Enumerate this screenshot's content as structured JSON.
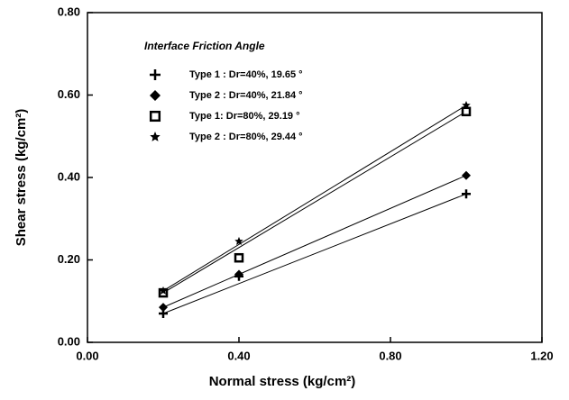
{
  "chart_data": {
    "type": "scatter",
    "xlabel": "Normal stress (kg/cm²)",
    "ylabel": "Shear stress (kg/cm²)",
    "legend_title": "Interface Friction Angle",
    "x": [
      0.2,
      0.4,
      1.0
    ],
    "series": [
      {
        "name": "Type 1 : Dr=40%, 19.65 °",
        "marker": "plus",
        "color": "#000000",
        "values": [
          0.07,
          0.16,
          0.36
        ]
      },
      {
        "name": "Type 2 : Dr=40%, 21.84 °",
        "marker": "diamond",
        "color": "#000000",
        "values": [
          0.085,
          0.165,
          0.405
        ]
      },
      {
        "name": "Type 1: Dr=80%, 29.19 °",
        "marker": "square",
        "color": "#000000",
        "values": [
          0.12,
          0.205,
          0.56
        ]
      },
      {
        "name": "Type 2 : Dr=80%, 29.44 °",
        "marker": "star",
        "color": "#000000",
        "values": [
          0.125,
          0.245,
          0.575
        ]
      }
    ],
    "xlim": [
      0,
      1.2
    ],
    "xticks": [
      {
        "value": 0,
        "label": "0.00"
      },
      {
        "value": 0.4,
        "label": "0.40"
      },
      {
        "value": 0.8,
        "label": "0.80"
      },
      {
        "value": 1.2,
        "label": "1.20"
      }
    ],
    "ylim": [
      0,
      0.8
    ],
    "yticks": [
      {
        "value": 0,
        "label": "0.00"
      },
      {
        "value": 0.2,
        "label": "0.20"
      },
      {
        "value": 0.4,
        "label": "0.40"
      },
      {
        "value": 0.6,
        "label": "0.60"
      },
      {
        "value": 0.8,
        "label": "0.80"
      }
    ],
    "fit_lines": true
  }
}
